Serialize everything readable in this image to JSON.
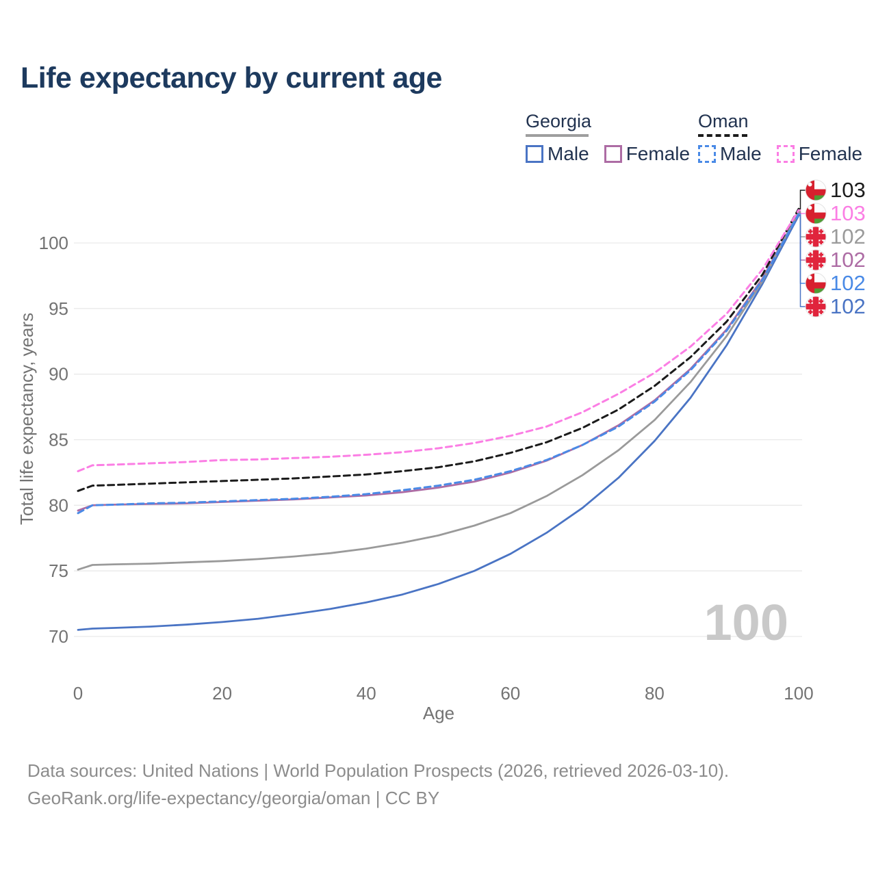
{
  "chart_data": {
    "type": "line",
    "title": "Life expectancy by current age",
    "xlabel": "Age",
    "ylabel": "Total life expectancy, years",
    "xlim": [
      0,
      100
    ],
    "ylim": [
      68.5,
      103.5
    ],
    "x_ticks": [
      0,
      20,
      40,
      60,
      80,
      100
    ],
    "y_ticks": [
      70,
      75,
      80,
      85,
      90,
      95,
      100
    ],
    "grid": "horizontal",
    "legend_position": "top-right",
    "hover_age_indicator": "100",
    "x": [
      0,
      2,
      5,
      10,
      15,
      20,
      25,
      30,
      35,
      40,
      45,
      50,
      55,
      60,
      65,
      70,
      75,
      80,
      85,
      90,
      95,
      100
    ],
    "series": [
      {
        "name": "Georgia Male",
        "country": "Georgia",
        "sex": "Male",
        "line_style": "solid",
        "color": "#4a74c4",
        "values": [
          70.5,
          70.6,
          70.65,
          70.75,
          70.9,
          71.1,
          71.35,
          71.7,
          72.1,
          72.6,
          73.2,
          74.0,
          75.0,
          76.3,
          77.9,
          79.8,
          82.1,
          84.9,
          88.2,
          92.2,
          96.9,
          102.1
        ],
        "end_value_label": "102"
      },
      {
        "name": "Georgia Female",
        "country": "Georgia",
        "sex": "Female",
        "line_style": "solid",
        "color": "#ad6ca4",
        "values": [
          79.6,
          80.0,
          80.05,
          80.1,
          80.15,
          80.25,
          80.35,
          80.45,
          80.6,
          80.75,
          81.0,
          81.35,
          81.8,
          82.5,
          83.4,
          84.6,
          86.1,
          88.0,
          90.4,
          93.4,
          97.3,
          102.3
        ],
        "end_value_label": "102"
      },
      {
        "name": "Georgia Both sexes",
        "country": "Georgia",
        "sex": "Both",
        "line_style": "solid",
        "color": "#9a9a9a",
        "values": [
          75.1,
          75.45,
          75.5,
          75.55,
          75.65,
          75.75,
          75.9,
          76.1,
          76.35,
          76.7,
          77.15,
          77.7,
          78.45,
          79.4,
          80.7,
          82.3,
          84.2,
          86.5,
          89.4,
          92.9,
          97.1,
          102.4
        ],
        "end_value_label": "102"
      },
      {
        "name": "Oman Both sexes",
        "country": "Oman",
        "sex": "Both",
        "line_style": "dashed",
        "color": "#1b1b1b",
        "values": [
          81.1,
          81.5,
          81.55,
          81.65,
          81.75,
          81.85,
          81.95,
          82.05,
          82.2,
          82.35,
          82.6,
          82.9,
          83.35,
          84.0,
          84.8,
          85.9,
          87.3,
          89.1,
          91.3,
          94.0,
          97.6,
          102.6
        ],
        "end_value_label": "103"
      },
      {
        "name": "Oman Male",
        "country": "Oman",
        "sex": "Male",
        "line_style": "dashed",
        "color": "#4a8ae6",
        "values": [
          79.4,
          80.0,
          80.05,
          80.15,
          80.2,
          80.3,
          80.4,
          80.5,
          80.65,
          80.85,
          81.15,
          81.5,
          81.95,
          82.6,
          83.45,
          84.6,
          86.0,
          87.9,
          90.3,
          93.3,
          97.2,
          102.2
        ],
        "end_value_label": "102"
      },
      {
        "name": "Oman Female",
        "country": "Oman",
        "sex": "Female",
        "line_style": "dashed",
        "color": "#fb7ee4",
        "values": [
          82.6,
          83.05,
          83.1,
          83.2,
          83.3,
          83.45,
          83.5,
          83.6,
          83.7,
          83.85,
          84.05,
          84.35,
          84.75,
          85.3,
          86.0,
          87.1,
          88.5,
          90.1,
          92.1,
          94.6,
          98.0,
          102.5
        ],
        "end_value_label": "103"
      }
    ],
    "end_labels": [
      {
        "value": "103",
        "flag": "oman",
        "series": 3
      },
      {
        "value": "103",
        "flag": "oman",
        "series": 5
      },
      {
        "value": "102",
        "flag": "georgia",
        "series": 2
      },
      {
        "value": "102",
        "flag": "georgia",
        "series": 1
      },
      {
        "value": "102",
        "flag": "oman",
        "series": 4
      },
      {
        "value": "102",
        "flag": "georgia",
        "series": 0
      }
    ]
  },
  "legend": {
    "groups": [
      {
        "country": "Georgia",
        "line_style": "solid",
        "underline_color": "#9e9e9e",
        "items": [
          {
            "label": "Male",
            "color": "#4a74c4"
          },
          {
            "label": "Female",
            "color": "#ad6ca4"
          }
        ]
      },
      {
        "country": "Oman",
        "line_style": "dashed",
        "underline_color": "#1b1b1b",
        "items": [
          {
            "label": "Male",
            "color": "#4a8ae6"
          },
          {
            "label": "Female",
            "color": "#fb7ee4"
          }
        ]
      }
    ]
  },
  "footer": {
    "line1": "Data sources: United Nations | World Population Prospects (2026, retrieved 2026-03-10).",
    "line2": "GeoRank.org/life-expectancy/georgia/oman | CC BY"
  }
}
